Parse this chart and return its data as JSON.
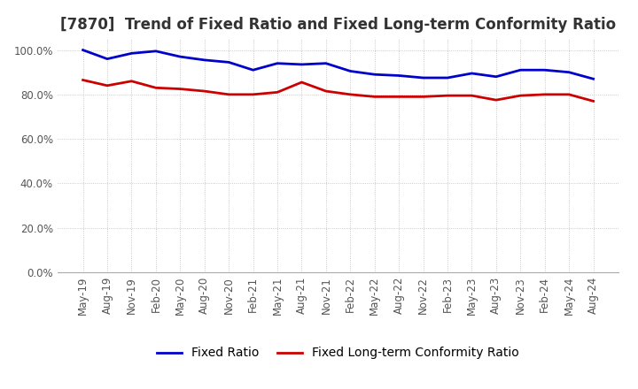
{
  "title": "[7870]  Trend of Fixed Ratio and Fixed Long-term Conformity Ratio",
  "x_labels": [
    "May-19",
    "Aug-19",
    "Nov-19",
    "Feb-20",
    "May-20",
    "Aug-20",
    "Nov-20",
    "Feb-21",
    "May-21",
    "Aug-21",
    "Nov-21",
    "Feb-22",
    "May-22",
    "Aug-22",
    "Nov-22",
    "Feb-23",
    "May-23",
    "Aug-23",
    "Nov-23",
    "Feb-24",
    "May-24",
    "Aug-24"
  ],
  "fixed_ratio": [
    100.0,
    96.0,
    98.5,
    99.5,
    97.0,
    95.5,
    94.5,
    91.0,
    94.0,
    93.5,
    94.0,
    90.5,
    89.0,
    88.5,
    87.5,
    87.5,
    89.5,
    88.0,
    91.0,
    91.0,
    90.0,
    87.0
  ],
  "fixed_lt_ratio": [
    86.5,
    84.0,
    86.0,
    83.0,
    82.5,
    81.5,
    80.0,
    80.0,
    81.0,
    85.5,
    81.5,
    80.0,
    79.0,
    79.0,
    79.0,
    79.5,
    79.5,
    77.5,
    79.5,
    80.0,
    80.0,
    77.0
  ],
  "fixed_ratio_color": "#0000cc",
  "fixed_lt_ratio_color": "#cc0000",
  "ylim": [
    0,
    105
  ],
  "yticks": [
    0,
    20,
    40,
    60,
    80,
    100
  ],
  "ytick_labels": [
    "0.0%",
    "20.0%",
    "40.0%",
    "60.0%",
    "80.0%",
    "100.0%"
  ],
  "legend_fixed": "Fixed Ratio",
  "legend_lt": "Fixed Long-term Conformity Ratio",
  "grid_color": "#bbbbbb",
  "background_color": "#ffffff",
  "title_fontsize": 12,
  "tick_fontsize": 8.5,
  "legend_fontsize": 10,
  "line_width": 2.0
}
